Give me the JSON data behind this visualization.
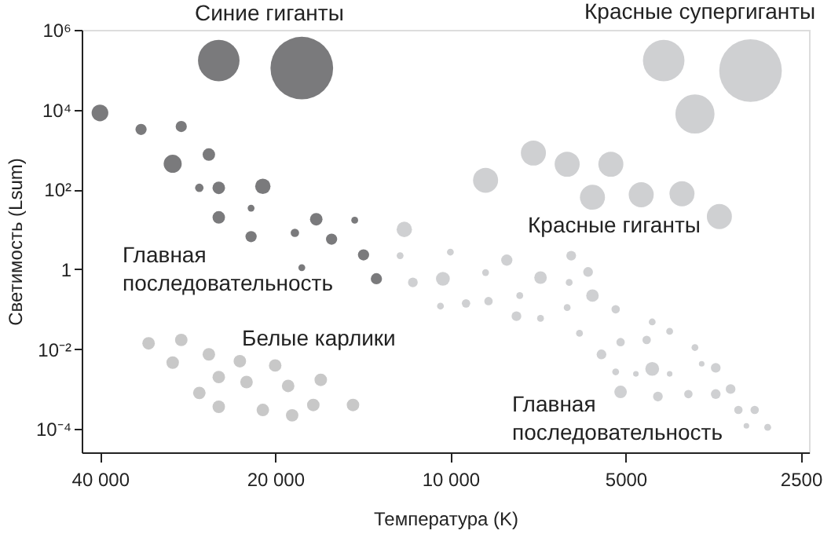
{
  "chart_data": {
    "type": "bubble",
    "xlabel": "Температура (K)",
    "ylabel": "Светимость (Lsum)",
    "log": "xy",
    "grid": false,
    "marker": "circle",
    "xlim": [
      43000,
      2420
    ],
    "xticks": [
      {
        "value": 40000,
        "label": "40 000"
      },
      {
        "value": 20000,
        "label": "20 000"
      },
      {
        "value": 10000,
        "label": "10 000"
      },
      5000,
      2500
    ],
    "ylim": [
      2.6e-05,
      1000000
    ],
    "yticks": [
      {
        "value": 0.0001,
        "label": "10⁻⁴"
      },
      {
        "value": 0.01,
        "label": "10⁻²"
      },
      1,
      {
        "value": 100,
        "label": "10²"
      },
      {
        "value": 10000,
        "label": "10⁴"
      },
      {
        "value": 1000000,
        "label": "10⁶"
      }
    ],
    "series": [
      {
        "color": "#7a7a7c",
        "x": [
          25000,
          18000,
          40000,
          34000,
          29000,
          30000,
          26000,
          27000,
          25000,
          21000,
          25000,
          22000,
          22000,
          18500,
          17000,
          16000,
          14600,
          14100,
          18000,
          13400
        ],
        "values": [
          170000,
          110000,
          8300,
          3200,
          3800,
          440,
          750,
          110,
          110,
          120,
          20,
          34,
          6.6,
          8.2,
          18,
          5.7,
          17,
          2.3,
          1.1,
          0.58
        ],
        "sizes": [
          0.44,
          1,
          0.071,
          0.032,
          0.032,
          0.083,
          0.04,
          0.018,
          0.04,
          0.06,
          0.04,
          0.012,
          0.032,
          0.018,
          0.04,
          0.032,
          0.012,
          0.032,
          0.012,
          0.032
        ]
      },
      {
        "color": "#cfd0d2",
        "x": [
          12000,
          12200,
          11600,
          4300,
          3050,
          3800,
          7200,
          8700,
          6300,
          5300,
          5700,
          4700,
          4000,
          3450,
          10000,
          8000,
          6200,
          10300,
          8700,
          7000,
          5800,
          6250,
          5700,
          7600,
          8600,
          9400,
          10400,
          5200,
          7700,
          7000,
          6300,
          4500,
          4200,
          6000,
          5100,
          4600,
          3800,
          5500,
          5200,
          4800,
          4500,
          4200,
          3700,
          3500,
          5100,
          4400,
          3900,
          3500,
          3300,
          3200,
          3000,
          3100,
          2850
        ],
        "values": [
          10,
          2.2,
          0.47,
          170000,
          95000,
          7800,
          820,
          170,
          430,
          430,
          64,
          74,
          78,
          21,
          2.7,
          1.7,
          2.2,
          0.58,
          0.83,
          0.62,
          0.86,
          0.47,
          0.22,
          0.22,
          0.16,
          0.14,
          0.12,
          0.1,
          0.067,
          0.059,
          0.11,
          0.048,
          0.028,
          0.025,
          0.015,
          0.017,
          0.011,
          0.0074,
          0.0027,
          0.0024,
          0.0032,
          0.0024,
          0.0043,
          0.0034,
          0.00085,
          0.00065,
          0.00075,
          0.00075,
          0.001,
          0.0003,
          0.0003,
          0.00012,
          0.00011
        ],
        "sizes": [
          0.06,
          0.012,
          0.024,
          0.44,
          1,
          0.39,
          0.16,
          0.16,
          0.16,
          0.16,
          0.16,
          0.16,
          0.16,
          0.16,
          0.012,
          0.032,
          0.024,
          0.049,
          0.012,
          0.04,
          0.024,
          0.012,
          0.04,
          0.012,
          0.018,
          0.018,
          0.012,
          0.018,
          0.024,
          0.012,
          0.012,
          0.012,
          0.012,
          0.012,
          0.018,
          0.018,
          0.012,
          0.024,
          0.012,
          0.008,
          0.049,
          0.008,
          0.008,
          0.024,
          0.04,
          0.024,
          0.018,
          0.024,
          0.024,
          0.018,
          0.018,
          0.008,
          0.012
        ]
      },
      {
        "color": "#c8c8c8",
        "x": [
          33000,
          29000,
          30000,
          26000,
          23000,
          25000,
          22400,
          20000,
          27000,
          25000,
          21000,
          18700,
          19000,
          16700,
          17200,
          14700
        ],
        "values": [
          0.014,
          0.017,
          0.0046,
          0.0074,
          0.005,
          0.002,
          0.0015,
          0.0039,
          0.0008,
          0.00036,
          0.0003,
          0.00022,
          0.0012,
          0.0017,
          0.0004,
          0.0004
        ],
        "sizes": [
          0.04,
          0.04,
          0.04,
          0.04,
          0.04,
          0.04,
          0.04,
          0.04,
          0.04,
          0.04,
          0.04,
          0.04,
          0.04,
          0.04,
          0.04,
          0.04
        ]
      }
    ],
    "annotations": [
      "Синие гиганты",
      "Красные супергиганты",
      "Главная\nпоследовательность",
      "Красные гиганты",
      "Белые карлики",
      "Главная\nпоследовательность"
    ]
  }
}
